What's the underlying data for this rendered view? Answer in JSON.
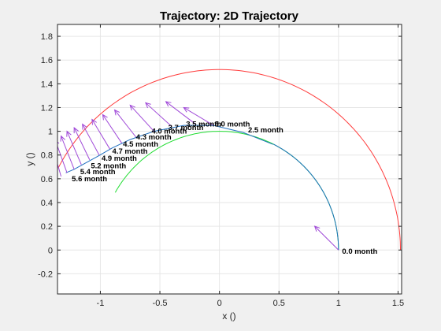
{
  "chart_data": {
    "type": "line",
    "title": "Trajectory: 2D Trajectory",
    "xlabel": "x ()",
    "ylabel": "y ()",
    "xlim": [
      -1.36,
      1.53
    ],
    "ylim": [
      -0.37,
      1.9
    ],
    "xticks": [
      -1,
      -0.5,
      0,
      0.5,
      1,
      1.5
    ],
    "xtick_labels": [
      "-1",
      "-0.5",
      "0",
      "0.5",
      "1",
      "1.5"
    ],
    "yticks": [
      -0.2,
      0,
      0.2,
      0.4,
      0.6,
      0.8,
      1,
      1.2,
      1.4,
      1.6,
      1.8
    ],
    "ytick_labels": [
      "-0.2",
      "0",
      "0.2",
      "0.4",
      "0.6",
      "0.8",
      "1",
      "1.2",
      "1.4",
      "1.6",
      "1.8"
    ],
    "grid": true,
    "colors": {
      "outer": "#ff3b3b",
      "inner": "#22dd33",
      "path": "#1f6fbf",
      "arrow": "#a04ad8",
      "axes_bg": "#ffffff",
      "figure_bg": "#f0f0f0",
      "grid": "#e6e6e6"
    },
    "series": [
      {
        "key": "outer",
        "kind": "arc",
        "center": [
          0,
          0
        ],
        "radius": 1.52,
        "angle_deg": [
          0,
          153
        ]
      },
      {
        "key": "inner",
        "kind": "arc",
        "center": [
          0,
          0
        ],
        "radius": 1.0,
        "angle_deg": [
          0,
          151
        ]
      },
      {
        "key": "path",
        "kind": "arc",
        "center": [
          0,
          0
        ],
        "radius": 1.0,
        "angle_deg": [
          0,
          63
        ]
      },
      {
        "key": "path",
        "kind": "points",
        "x": [
          0.45,
          0.2,
          -0.05,
          -0.3,
          -0.55,
          -0.75,
          -0.9,
          -1.02,
          -1.13,
          -1.22,
          -1.29
        ],
        "y": [
          0.89,
          0.99,
          1.05,
          1.05,
          1.0,
          0.93,
          0.86,
          0.79,
          0.73,
          0.68,
          0.65
        ]
      }
    ],
    "arrows": [
      {
        "x": 1.0,
        "y": 0.0,
        "dx": -0.2,
        "dy": 0.2
      },
      {
        "x": -0.05,
        "y": 1.05,
        "dx": -0.25,
        "dy": 0.15
      },
      {
        "x": -0.2,
        "y": 1.06,
        "dx": -0.25,
        "dy": 0.19
      },
      {
        "x": -0.4,
        "y": 1.04,
        "dx": -0.22,
        "dy": 0.2
      },
      {
        "x": -0.55,
        "y": 1.0,
        "dx": -0.2,
        "dy": 0.22
      },
      {
        "x": -0.7,
        "y": 0.95,
        "dx": -0.18,
        "dy": 0.23
      },
      {
        "x": -0.82,
        "y": 0.9,
        "dx": -0.16,
        "dy": 0.24
      },
      {
        "x": -0.92,
        "y": 0.85,
        "dx": -0.15,
        "dy": 0.25
      },
      {
        "x": -1.01,
        "y": 0.8,
        "dx": -0.14,
        "dy": 0.26
      },
      {
        "x": -1.09,
        "y": 0.76,
        "dx": -0.13,
        "dy": 0.27
      },
      {
        "x": -1.16,
        "y": 0.72,
        "dx": -0.12,
        "dy": 0.28
      },
      {
        "x": -1.22,
        "y": 0.68,
        "dx": -0.11,
        "dy": 0.28
      },
      {
        "x": -1.28,
        "y": 0.65,
        "dx": -0.1,
        "dy": 0.28
      },
      {
        "x": -1.33,
        "y": 0.62,
        "dx": -0.08,
        "dy": 0.28
      }
    ],
    "annotations": [
      {
        "text": "0.0 month",
        "x": 1.03,
        "y": -0.01
      },
      {
        "text": "2.5 month",
        "x": 0.24,
        "y": 1.01
      },
      {
        "text": "3.0 month",
        "x": -0.04,
        "y": 1.06
      },
      {
        "text": "3.5 month",
        "x": -0.28,
        "y": 1.06
      },
      {
        "text": "3.7 month",
        "x": -0.43,
        "y": 1.03
      },
      {
        "text": "4.0 month",
        "x": -0.57,
        "y": 1.0
      },
      {
        "text": "4.3 month",
        "x": -0.7,
        "y": 0.95
      },
      {
        "text": "4.5 month",
        "x": -0.81,
        "y": 0.89
      },
      {
        "text": "4.7 month",
        "x": -0.9,
        "y": 0.83
      },
      {
        "text": "4.9 month",
        "x": -0.99,
        "y": 0.77
      },
      {
        "text": "5.2 month",
        "x": -1.08,
        "y": 0.71
      },
      {
        "text": "5.4 month",
        "x": -1.17,
        "y": 0.66
      },
      {
        "text": "5.6 month",
        "x": -1.24,
        "y": 0.6
      }
    ]
  }
}
